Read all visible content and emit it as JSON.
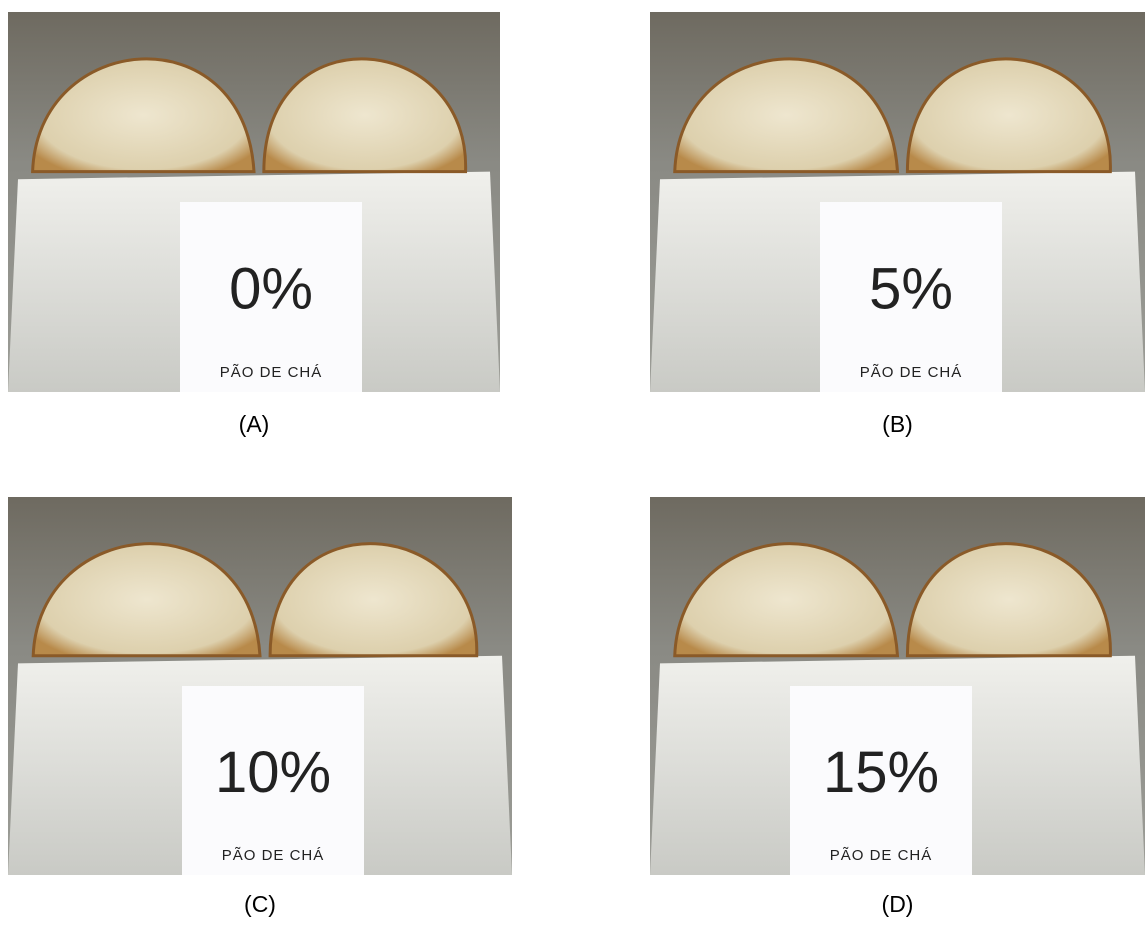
{
  "panels": [
    {
      "caption": "(A)",
      "label": "0%",
      "sublabel": "PÃO DE CHÁ"
    },
    {
      "caption": "(B)",
      "label": "5%",
      "sublabel": "PÃO DE CHÁ"
    },
    {
      "caption": "(C)",
      "label": "10%",
      "sublabel": "PÃO DE CHÁ"
    },
    {
      "caption": "(D)",
      "label": "15%",
      "sublabel": "PÃO DE CHÁ"
    }
  ]
}
